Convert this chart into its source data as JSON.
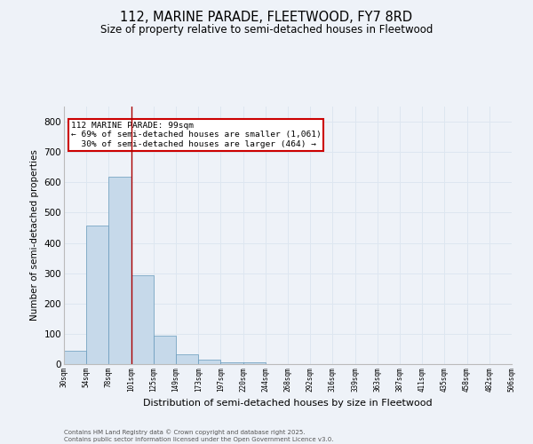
{
  "title1": "112, MARINE PARADE, FLEETWOOD, FY7 8RD",
  "title2": "Size of property relative to semi-detached houses in Fleetwood",
  "xlabel": "Distribution of semi-detached houses by size in Fleetwood",
  "ylabel": "Number of semi-detached properties",
  "bar_values": [
    44,
    457,
    619,
    292,
    93,
    33,
    14,
    7,
    5,
    0,
    0,
    0,
    0,
    0,
    0,
    0,
    0,
    0,
    0,
    0
  ],
  "bin_labels": [
    "30sqm",
    "54sqm",
    "78sqm",
    "101sqm",
    "125sqm",
    "149sqm",
    "173sqm",
    "197sqm",
    "220sqm",
    "244sqm",
    "268sqm",
    "292sqm",
    "316sqm",
    "339sqm",
    "363sqm",
    "387sqm",
    "411sqm",
    "435sqm",
    "458sqm",
    "482sqm",
    "506sqm"
  ],
  "bar_color": "#c6d9ea",
  "bar_edge_color": "#6699bb",
  "grid_color": "#dde6f0",
  "bg_color": "#eef2f8",
  "vline_x": 3,
  "vline_color": "#aa0000",
  "annotation_text": "112 MARINE PARADE: 99sqm\n← 69% of semi-detached houses are smaller (1,061)\n  30% of semi-detached houses are larger (464) →",
  "annotation_box_color": "#ffffff",
  "annotation_box_edge": "#cc0000",
  "ylim": [
    0,
    850
  ],
  "yticks": [
    0,
    100,
    200,
    300,
    400,
    500,
    600,
    700,
    800
  ],
  "footer1": "Contains HM Land Registry data © Crown copyright and database right 2025.",
  "footer2": "Contains public sector information licensed under the Open Government Licence v3.0."
}
